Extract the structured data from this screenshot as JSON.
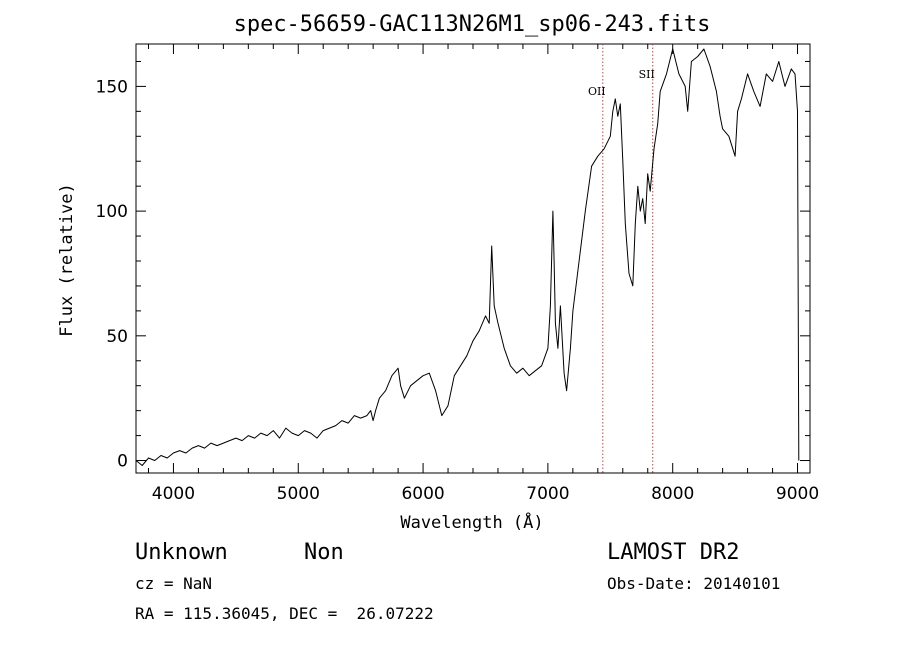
{
  "chart_data": {
    "type": "line",
    "title": "spec-56659-GAC113N26M1_sp06-243.fits",
    "xlabel": "Wavelength (Å)",
    "ylabel": "Flux (relative)",
    "xlim": [
      3700,
      9100
    ],
    "ylim": [
      -5,
      167
    ],
    "xticks": [
      4000,
      5000,
      6000,
      7000,
      8000,
      9000
    ],
    "yticks": [
      0,
      50,
      100,
      150
    ],
    "xtick_labels": [
      "4000",
      "5000",
      "6000",
      "7000",
      "8000",
      "9000"
    ],
    "ytick_labels": [
      "0",
      "50",
      "100",
      "150"
    ],
    "grid": false,
    "legend": "none",
    "line_color": "#000000",
    "lines": [
      {
        "label": "OII",
        "x": 7440,
        "color": "#c04040"
      },
      {
        "label": "SII",
        "x": 7840,
        "color": "#c04040"
      }
    ],
    "series": [
      {
        "x": [
          3700,
          3750,
          3800,
          3850,
          3900,
          3950,
          4000,
          4050,
          4100,
          4150,
          4200,
          4250,
          4300,
          4350,
          4400,
          4450,
          4500,
          4550,
          4600,
          4650,
          4700,
          4750,
          4800,
          4850,
          4900,
          4950,
          5000,
          5050,
          5100,
          5150,
          5200,
          5250,
          5300,
          5350,
          5400,
          5450,
          5500,
          5550,
          5580,
          5600,
          5620,
          5650,
          5700,
          5750,
          5800,
          5820,
          5850,
          5900,
          5950,
          6000,
          6050,
          6100,
          6150,
          6200,
          6250,
          6300,
          6350,
          6400,
          6450,
          6500,
          6530,
          6550,
          6570,
          6600,
          6650,
          6700,
          6750,
          6800,
          6850,
          6900,
          6950,
          7000,
          7020,
          7040,
          7050,
          7060,
          7080,
          7100,
          7130,
          7150,
          7180,
          7200,
          7250,
          7300,
          7350,
          7400,
          7450,
          7500,
          7520,
          7540,
          7560,
          7580,
          7600,
          7620,
          7650,
          7680,
          7700,
          7720,
          7740,
          7760,
          7780,
          7800,
          7820,
          7850,
          7880,
          7900,
          7950,
          8000,
          8050,
          8100,
          8120,
          8150,
          8200,
          8250,
          8300,
          8350,
          8380,
          8400,
          8450,
          8500,
          8520,
          8550,
          8600,
          8650,
          8700,
          8750,
          8800,
          8850,
          8900,
          8950,
          8980,
          9000,
          9010
        ],
        "y": [
          0,
          -2,
          1,
          0,
          2,
          1,
          3,
          4,
          3,
          5,
          6,
          5,
          7,
          6,
          7,
          8,
          9,
          8,
          10,
          9,
          11,
          10,
          12,
          9,
          13,
          11,
          10,
          12,
          11,
          9,
          12,
          13,
          14,
          16,
          15,
          18,
          17,
          18,
          20,
          16,
          20,
          25,
          28,
          34,
          37,
          30,
          25,
          30,
          32,
          34,
          35,
          28,
          18,
          22,
          34,
          38,
          42,
          48,
          52,
          58,
          55,
          86,
          62,
          55,
          45,
          38,
          35,
          37,
          34,
          36,
          38,
          45,
          62,
          100,
          80,
          55,
          45,
          62,
          35,
          28,
          45,
          60,
          80,
          100,
          118,
          122,
          125,
          130,
          140,
          145,
          138,
          143,
          120,
          95,
          75,
          70,
          95,
          110,
          100,
          105,
          95,
          115,
          108,
          125,
          135,
          148,
          155,
          165,
          155,
          150,
          140,
          160,
          162,
          165,
          158,
          148,
          138,
          133,
          130,
          122,
          140,
          145,
          155,
          148,
          142,
          155,
          152,
          160,
          150,
          157,
          155,
          140,
          0
        ]
      }
    ],
    "footer": {
      "object_type": "Unknown",
      "subclass": "Non",
      "survey": "LAMOST DR2",
      "cz": "cz = NaN",
      "obs_date": "Obs-Date: 20140101",
      "coords": "RA = 115.36045, DEC =  26.07222"
    }
  }
}
